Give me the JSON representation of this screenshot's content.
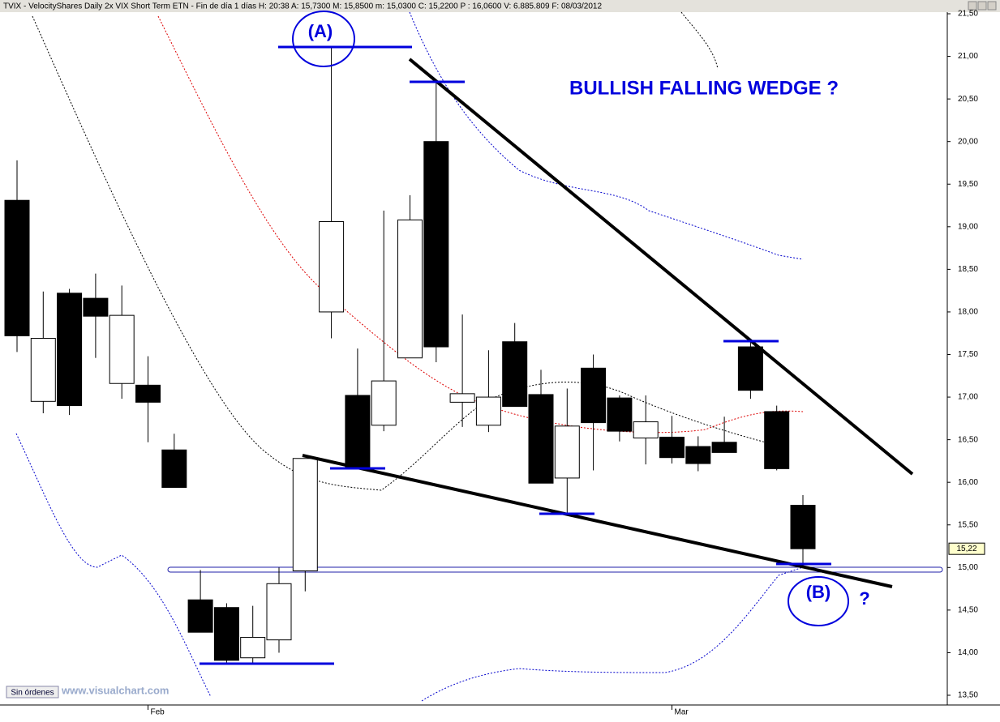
{
  "chart_data": {
    "type": "candlestick",
    "title": "TVIX - VelocityShares Daily 2x VIX Short Term ETN - Fin de día 1 días  H: 20:38  A: 15,7300  M: 15,8500  m: 15,0300  C: 15,2200  P : 16,0600  V: 6.885.809  F: 08/03/2012",
    "categories": [
      null,
      null,
      null,
      null,
      null,
      "Feb",
      null,
      null,
      null,
      null,
      null,
      null,
      null,
      null,
      null,
      null,
      null,
      null,
      null,
      null,
      null,
      null,
      null,
      null,
      null,
      "Mar",
      null,
      null,
      null,
      null,
      null
    ],
    "open": [
      19.31,
      16.95,
      18.22,
      18.16,
      17.16,
      17.14,
      16.38,
      14.62,
      14.53,
      13.94,
      14.15,
      14.96,
      18.0,
      17.02,
      16.67,
      17.46,
      20.0,
      16.94,
      16.67,
      17.65,
      17.03,
      16.05,
      17.34,
      16.99,
      16.52,
      16.53,
      16.42,
      16.47,
      17.59,
      16.83,
      15.73
    ],
    "high": [
      19.78,
      18.24,
      18.27,
      18.45,
      18.31,
      17.48,
      16.57,
      14.97,
      14.58,
      14.55,
      15.0,
      16.28,
      21.11,
      17.57,
      19.19,
      19.37,
      20.71,
      17.97,
      17.55,
      17.87,
      17.32,
      17.1,
      17.5,
      17.02,
      17.02,
      16.78,
      16.54,
      16.77,
      17.65,
      16.9,
      15.85
    ],
    "low": [
      17.53,
      16.81,
      16.79,
      17.46,
      16.98,
      16.47,
      15.94,
      14.24,
      13.88,
      13.88,
      14.0,
      14.72,
      17.69,
      16.16,
      16.6,
      17.46,
      17.41,
      16.65,
      16.59,
      16.89,
      15.99,
      15.62,
      16.14,
      16.48,
      16.21,
      16.22,
      16.13,
      16.35,
      16.98,
      16.14,
      15.03
    ],
    "close": [
      17.72,
      17.69,
      16.9,
      17.95,
      17.96,
      16.94,
      15.94,
      14.24,
      13.91,
      14.18,
      14.81,
      16.28,
      19.06,
      16.18,
      17.19,
      19.08,
      17.59,
      17.04,
      17.0,
      16.89,
      15.99,
      16.66,
      16.7,
      16.6,
      16.71,
      16.29,
      16.22,
      16.35,
      17.08,
      16.16,
      15.22
    ],
    "up_color": "#ffffff",
    "down_color": "#000000",
    "ylim": [
      13.5,
      21.5
    ],
    "yticks": [
      {
        "value": 13.5,
        "label": "13,50"
      },
      {
        "value": 14,
        "label": "14,00"
      },
      {
        "value": 14.5,
        "label": "14,50"
      },
      {
        "value": 15,
        "label": "15,00"
      },
      {
        "value": 15.5,
        "label": "15,50"
      },
      {
        "value": 16,
        "label": "16,00"
      },
      {
        "value": 16.5,
        "label": "16,50"
      },
      {
        "value": 17,
        "label": "17,00"
      },
      {
        "value": 17.5,
        "label": "17,50"
      },
      {
        "value": 18,
        "label": "18,00"
      },
      {
        "value": 18.5,
        "label": "18,50"
      },
      {
        "value": 19,
        "label": "19,00"
      },
      {
        "value": 19.5,
        "label": "19,50"
      },
      {
        "value": 20,
        "label": "20,00"
      },
      {
        "value": 20.5,
        "label": "20,50"
      },
      {
        "value": 21,
        "label": "21,00"
      },
      {
        "value": 21.5,
        "label": "21,50"
      }
    ],
    "last_price": {
      "value": 15.22,
      "label": "15,22"
    },
    "annotations": [
      "(A)",
      "(B)",
      "?",
      "BULLISH FALLING WEDGE ?"
    ]
  },
  "footer": {
    "status": "Sin órdenes",
    "site": "www.visualchart.com"
  }
}
